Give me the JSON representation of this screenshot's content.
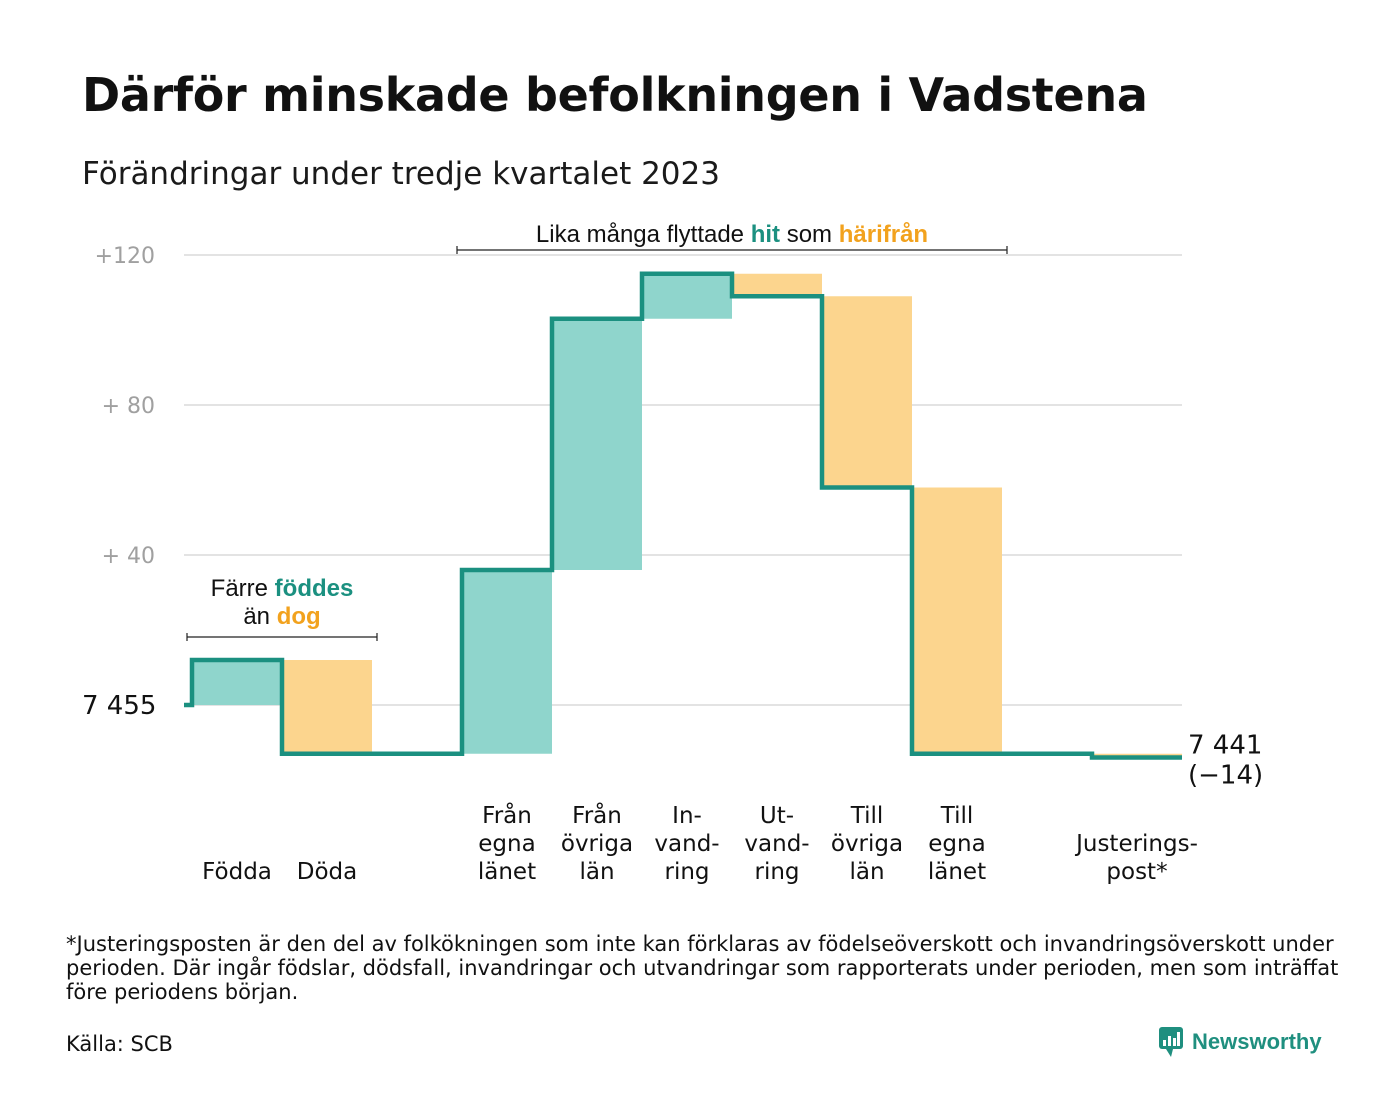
{
  "title": "Därför minskade befolkningen i Vadstena",
  "subtitle": "Förändringar under tredje kvartalet 2023",
  "footnote": "*Justeringsposten är den del av folkökningen som inte kan förklaras av födelseöverskott och invandringsöverskott under perioden. Där ingår födslar, dödsfall, invandringar och utvandringar som rapporterats under perioden, men som inträffat före periodens början.",
  "source": "Källa: SCB",
  "logo_text": "Newsworthy",
  "colors": {
    "positive": "#8fd5cc",
    "negative": "#fcd58e",
    "line": "#1b9080",
    "accent_teal": "#1b9080",
    "accent_orange": "#f2a21e",
    "grid": "#e3e3e3"
  },
  "chart_data": {
    "type": "waterfall",
    "start_value": 7455,
    "start_label": "7  455",
    "end_value": 7441,
    "end_label": "7 441",
    "end_change_label": "(−14)",
    "y_ticks": [
      {
        "value": 120,
        "label": "+120"
      },
      {
        "value": 80,
        "label": "+  80"
      },
      {
        "value": 40,
        "label": "+  40"
      }
    ],
    "ylim": [
      -22,
      128
    ],
    "steps": [
      {
        "label": [
          "Födda"
        ],
        "value": 12
      },
      {
        "label": [
          "Döda"
        ],
        "value": -25
      },
      {
        "label": [],
        "value": 0
      },
      {
        "label": [
          "Från",
          "egna",
          "länet"
        ],
        "value": 49
      },
      {
        "label": [
          "Från",
          "övriga",
          "län"
        ],
        "value": 67
      },
      {
        "label": [
          "In-",
          "vand-",
          "ring"
        ],
        "value": 12
      },
      {
        "label": [
          "Ut-",
          "vand-",
          "ring"
        ],
        "value": -6
      },
      {
        "label": [
          "Till",
          "övriga",
          "län"
        ],
        "value": -51
      },
      {
        "label": [
          "Till",
          "egna",
          "länet"
        ],
        "value": -71
      },
      {
        "label": [],
        "value": 0
      },
      {
        "label": [
          "Justerings-",
          "post*"
        ],
        "value": -1
      }
    ],
    "annotations": [
      {
        "parts": [
          {
            "text": "Färre ",
            "color": "dark"
          },
          {
            "text": "föddes",
            "color": "teal"
          }
        ],
        "parts2": [
          {
            "text": "än ",
            "color": "dark"
          },
          {
            "text": "dog",
            "color": "orange"
          }
        ],
        "from_step": 0,
        "to_step": 1
      },
      {
        "parts": [
          {
            "text": "Lika många flyttade ",
            "color": "dark"
          },
          {
            "text": "hit",
            "color": "teal"
          },
          {
            "text": "  som ",
            "color": "dark"
          },
          {
            "text": "härifrån",
            "color": "orange"
          }
        ],
        "from_step": 3,
        "to_step": 8
      }
    ]
  }
}
